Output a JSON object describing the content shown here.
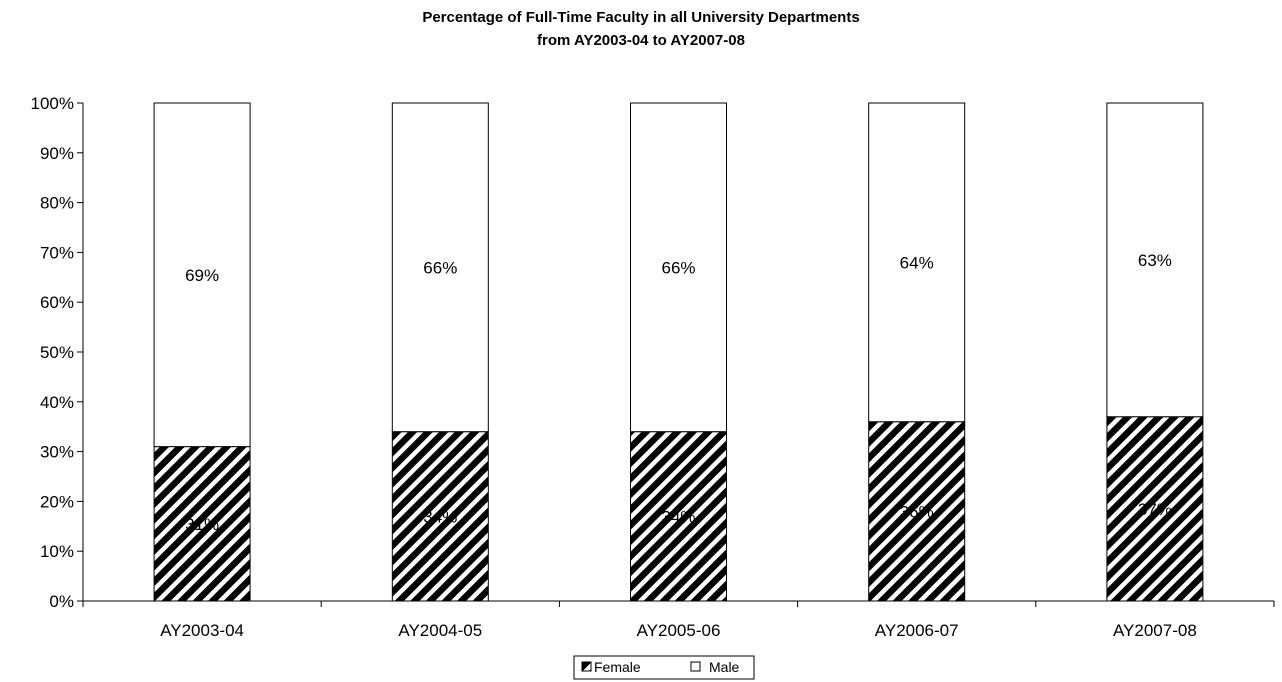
{
  "chart_data": {
    "type": "bar",
    "stacked": true,
    "normalized": true,
    "title": "Percentage of Full-Time Faculty in all University Departments",
    "subtitle": "from AY2003-04 to AY2007-08",
    "categories": [
      "AY2003-04",
      "AY2004-05",
      "AY2005-06",
      "AY2006-07",
      "AY2007-08"
    ],
    "series": [
      {
        "name": "Female",
        "values": [
          31,
          34,
          34,
          36,
          37
        ],
        "labels": [
          "31%",
          "34%",
          "34%",
          "36%",
          "37%"
        ],
        "fill": "diagonal-hatch",
        "color": "#000000"
      },
      {
        "name": "Male",
        "values": [
          69,
          66,
          66,
          64,
          63
        ],
        "labels": [
          "69%",
          "66%",
          "66%",
          "64%",
          "63%"
        ],
        "fill": "solid",
        "color": "#ffffff"
      }
    ],
    "ylim": [
      0,
      100
    ],
    "yticks": [
      "0%",
      "10%",
      "20%",
      "30%",
      "40%",
      "50%",
      "60%",
      "70%",
      "80%",
      "90%",
      "100%"
    ],
    "xlabel": "",
    "ylabel": "",
    "grid": false,
    "legend": "bottom-center"
  }
}
